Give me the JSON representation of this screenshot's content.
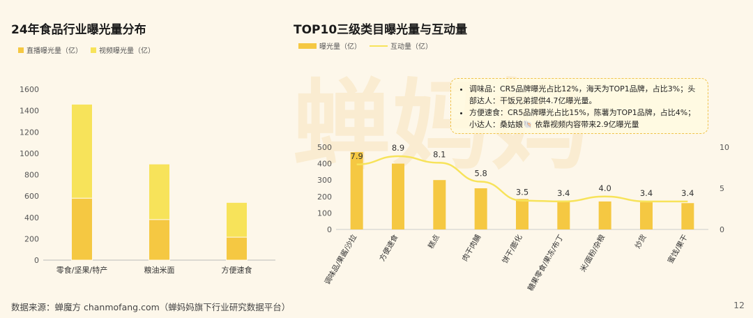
{
  "left": {
    "title": "24年食品行业曝光量分布",
    "legend": [
      {
        "label": "直播曝光量（亿）",
        "color": "#f5c842"
      },
      {
        "label": "视频曝光量（亿）",
        "color": "#f7e35a"
      }
    ]
  },
  "right": {
    "title": "TOP10三级类目曝光量与互动量",
    "legend": [
      {
        "label": "曝光量（亿）",
        "color": "#f5c842"
      },
      {
        "label": "互动量（亿）",
        "color": "#f7e35a"
      }
    ],
    "notes": [
      "调味品：CR5品牌曝光占比12%，海天为TOP1品牌，占比3%；头部达人：干饭兄弟提供4.7亿曝光量。",
      "方便速食：CR5品牌曝光占比15%，陈薯为TOP1品牌，占比4%；小达人：桑姑娘🐚 依靠视频内容带来2.9亿曝光量"
    ]
  },
  "watermark": "蝉妈妈",
  "footer": "数据来源：蝉魔方 chanmofang.com（蝉妈妈旗下行业研究数据平台）",
  "page_number": "12",
  "colors": {
    "background": "#fdf7ea",
    "bar_dark": "#f5c842",
    "bar_light": "#f7e35a"
  },
  "chart_data": [
    {
      "type": "bar",
      "stacked": true,
      "title": "24年食品行业曝光量分布",
      "categories": [
        "零食/坚果/特产",
        "粮油米面",
        "方便速食"
      ],
      "series": [
        {
          "name": "直播曝光量（亿）",
          "values": [
            580,
            380,
            215
          ]
        },
        {
          "name": "视频曝光量（亿）",
          "values": [
            880,
            520,
            325
          ]
        }
      ],
      "ylim": [
        0,
        1600
      ],
      "yticks": [
        0,
        200,
        400,
        600,
        800,
        1000,
        1200,
        1400,
        1600
      ],
      "grid": false,
      "legend": "top-left"
    },
    {
      "type": "bar",
      "title": "TOP10三级类目曝光量与互动量",
      "categories": [
        "调味品/果酱/沙拉",
        "方便速食",
        "糕点",
        "肉干肉脯",
        "饼干/膨化",
        "糖果零食/果冻/布丁",
        "米/面粉/杂粮",
        "炒货",
        "蜜饯/果干"
      ],
      "series": [
        {
          "name": "曝光量（亿）",
          "type": "bar",
          "axis": "left",
          "values": [
            470,
            400,
            300,
            250,
            185,
            175,
            170,
            165,
            160
          ]
        },
        {
          "name": "互动量（亿）",
          "type": "line",
          "axis": "right",
          "values": [
            7.9,
            8.9,
            8.1,
            5.8,
            3.5,
            3.4,
            4.0,
            3.4,
            3.4
          ]
        }
      ],
      "data_labels": [
        "7.9",
        "8.9",
        "8.1",
        "5.8",
        "3.5",
        "3.4",
        "4.0",
        "3.4",
        "3.4"
      ],
      "ylim_left": [
        0,
        500
      ],
      "yticks_left": [
        0,
        100,
        200,
        300,
        400,
        500
      ],
      "ylim_right": [
        0,
        10
      ],
      "yticks_right": [
        0,
        5,
        10
      ],
      "grid": false,
      "legend": "top-left"
    }
  ]
}
